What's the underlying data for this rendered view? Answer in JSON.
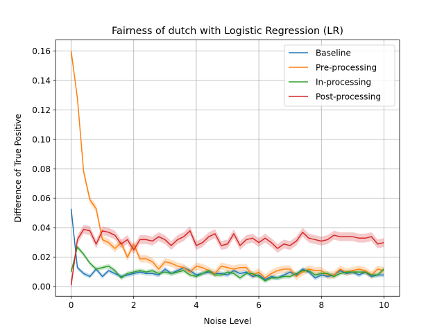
{
  "chart_data": {
    "type": "line",
    "title": "Fairness of dutch with Logistic Regression (LR)",
    "xlabel": "Noise Level",
    "ylabel": "Difference of True Positive",
    "xlim": [
      -0.5,
      10.5
    ],
    "ylim": [
      -0.0065,
      0.1675
    ],
    "xticks": [
      0,
      2,
      4,
      6,
      8,
      10
    ],
    "xtick_labels": [
      "0",
      "2",
      "4",
      "6",
      "8",
      "10"
    ],
    "yticks": [
      0.0,
      0.02,
      0.04,
      0.06,
      0.08,
      0.1,
      0.12,
      0.14,
      0.16
    ],
    "ytick_labels": [
      "0.00",
      "0.02",
      "0.04",
      "0.06",
      "0.08",
      "0.10",
      "0.12",
      "0.14",
      "0.16"
    ],
    "grid": true,
    "legend_position": "top-right",
    "x": [
      0,
      0.2,
      0.4,
      0.6,
      0.8,
      1.0,
      1.2,
      1.4,
      1.6,
      1.8,
      2.0,
      2.2,
      2.4,
      2.6,
      2.8,
      3.0,
      3.2,
      3.4,
      3.6,
      3.8,
      4.0,
      4.2,
      4.4,
      4.6,
      4.8,
      5.0,
      5.2,
      5.4,
      5.6,
      5.8,
      6.0,
      6.2,
      6.4,
      6.6,
      6.8,
      7.0,
      7.2,
      7.4,
      7.6,
      7.8,
      8.0,
      8.2,
      8.4,
      8.6,
      8.8,
      9.0,
      9.2,
      9.4,
      9.6,
      9.8,
      10.0
    ],
    "series": [
      {
        "name": "Baseline",
        "color": "#1f77b4",
        "band": 0.0015,
        "values": [
          0.053,
          0.013,
          0.009,
          0.007,
          0.012,
          0.007,
          0.011,
          0.009,
          0.007,
          0.008,
          0.009,
          0.01,
          0.009,
          0.009,
          0.008,
          0.012,
          0.009,
          0.011,
          0.013,
          0.011,
          0.008,
          0.009,
          0.01,
          0.009,
          0.009,
          0.008,
          0.011,
          0.009,
          0.01,
          0.007,
          0.008,
          0.005,
          0.007,
          0.006,
          0.008,
          0.01,
          0.008,
          0.012,
          0.01,
          0.006,
          0.008,
          0.007,
          0.008,
          0.011,
          0.009,
          0.01,
          0.008,
          0.01,
          0.007,
          0.008,
          0.008
        ]
      },
      {
        "name": "Pre-processing",
        "color": "#ff7f0e",
        "band": 0.0025,
        "values": [
          0.16,
          0.128,
          0.078,
          0.059,
          0.053,
          0.032,
          0.03,
          0.026,
          0.03,
          0.02,
          0.029,
          0.019,
          0.019,
          0.017,
          0.012,
          0.017,
          0.016,
          0.014,
          0.013,
          0.01,
          0.014,
          0.013,
          0.011,
          0.009,
          0.014,
          0.013,
          0.012,
          0.013,
          0.013,
          0.008,
          0.01,
          0.006,
          0.009,
          0.011,
          0.012,
          0.012,
          0.007,
          0.01,
          0.012,
          0.011,
          0.011,
          0.008,
          0.008,
          0.012,
          0.01,
          0.011,
          0.012,
          0.011,
          0.008,
          0.012,
          0.011
        ]
      },
      {
        "name": "In-processing",
        "color": "#2ca02c",
        "band": 0.0015,
        "values": [
          0.01,
          0.027,
          0.022,
          0.016,
          0.012,
          0.013,
          0.014,
          0.011,
          0.006,
          0.009,
          0.01,
          0.011,
          0.01,
          0.011,
          0.009,
          0.01,
          0.009,
          0.01,
          0.011,
          0.008,
          0.007,
          0.009,
          0.011,
          0.008,
          0.008,
          0.01,
          0.009,
          0.006,
          0.009,
          0.009,
          0.007,
          0.004,
          0.006,
          0.006,
          0.007,
          0.007,
          0.009,
          0.011,
          0.011,
          0.008,
          0.009,
          0.009,
          0.007,
          0.009,
          0.01,
          0.01,
          0.01,
          0.01,
          0.008,
          0.008,
          0.012
        ]
      },
      {
        "name": "Post-processing",
        "color": "#d62728",
        "band": 0.003,
        "values": [
          0.001,
          0.032,
          0.039,
          0.038,
          0.029,
          0.038,
          0.037,
          0.035,
          0.029,
          0.032,
          0.025,
          0.032,
          0.032,
          0.031,
          0.034,
          0.032,
          0.028,
          0.032,
          0.034,
          0.038,
          0.028,
          0.03,
          0.034,
          0.036,
          0.028,
          0.029,
          0.036,
          0.028,
          0.032,
          0.033,
          0.03,
          0.033,
          0.03,
          0.026,
          0.029,
          0.028,
          0.031,
          0.037,
          0.033,
          0.032,
          0.031,
          0.032,
          0.035,
          0.034,
          0.034,
          0.034,
          0.033,
          0.033,
          0.034,
          0.029,
          0.03
        ]
      }
    ]
  }
}
